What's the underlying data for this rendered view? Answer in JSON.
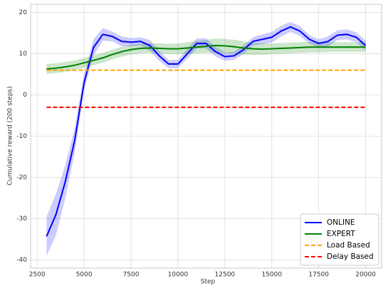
{
  "chart_data": {
    "type": "line",
    "xlabel": "Step",
    "ylabel": "Cumulative reward (200 steps)",
    "x": [
      3000,
      3500,
      4000,
      4500,
      5000,
      5500,
      6000,
      6500,
      7000,
      7500,
      8000,
      8500,
      9000,
      9500,
      10000,
      10500,
      11000,
      11500,
      12000,
      12500,
      13000,
      13500,
      14000,
      14500,
      15000,
      15500,
      16000,
      16500,
      17000,
      17500,
      18000,
      18500,
      19000,
      19500,
      20000
    ],
    "xlim": [
      2150,
      20850
    ],
    "xticks": [
      2500,
      5000,
      7500,
      10000,
      12500,
      15000,
      17500,
      20000
    ],
    "ylim": [
      -42,
      22
    ],
    "yticks": [
      -40,
      -30,
      -20,
      -10,
      0,
      10,
      20
    ],
    "grid": true,
    "legend": "lower right",
    "series": [
      {
        "name": "ONLINE",
        "color": "#0000ff",
        "dashed": false,
        "values": [
          -34.3,
          -29,
          -21,
          -11,
          3,
          11.5,
          14.7,
          14.2,
          13,
          12.8,
          13,
          12,
          9.5,
          7.5,
          7.5,
          10,
          12.5,
          12.5,
          10.5,
          9.3,
          9.5,
          11,
          13,
          13.5,
          14,
          15.5,
          16.5,
          15.5,
          13.5,
          12.5,
          13,
          14.5,
          14.7,
          14,
          12
        ],
        "lower": [
          -39,
          -34,
          -25,
          -14,
          1,
          9.5,
          13.2,
          13,
          11.8,
          11.8,
          12,
          10.7,
          8.3,
          6.5,
          6.5,
          8.8,
          11.3,
          11.3,
          9.3,
          8.3,
          8.5,
          10,
          12,
          12.3,
          12.7,
          14.2,
          15.3,
          14.3,
          12.5,
          11.5,
          11.8,
          13.3,
          13.5,
          12.8,
          10.8
        ],
        "upper": [
          -29.5,
          -24,
          -17,
          -8,
          5,
          13.5,
          16.2,
          15.4,
          14.2,
          13.8,
          14,
          13.3,
          10.7,
          8.5,
          8.5,
          11.2,
          13.7,
          13.7,
          11.7,
          10.3,
          10.5,
          12,
          14,
          14.7,
          15.3,
          16.8,
          17.7,
          16.7,
          14.5,
          13.5,
          14.2,
          15.7,
          15.9,
          15.2,
          13.2
        ]
      },
      {
        "name": "EXPERT",
        "color": "#008000",
        "dashed": false,
        "values": [
          6.3,
          6.5,
          6.8,
          7.2,
          7.8,
          8.4,
          9,
          9.8,
          10.5,
          11,
          11.3,
          11.4,
          11.3,
          11.2,
          11.2,
          11.4,
          11.6,
          11.8,
          12,
          11.9,
          11.7,
          11.4,
          11.2,
          11.1,
          11.2,
          11.3,
          11.4,
          11.5,
          11.6,
          11.6,
          11.6,
          11.6,
          11.6,
          11.6,
          11.6
        ],
        "lower": [
          5.1,
          5.3,
          5.6,
          6,
          6.6,
          7.2,
          7.8,
          8.6,
          9.3,
          9.8,
          10.1,
          10.2,
          10.1,
          10,
          9.9,
          10,
          10.1,
          10.2,
          10.3,
          10.2,
          10,
          9.8,
          9.7,
          9.7,
          9.9,
          10,
          10.1,
          10.2,
          10.3,
          10.3,
          10.4,
          10.4,
          10.4,
          10.4,
          10.4
        ],
        "upper": [
          7.5,
          7.7,
          8,
          8.4,
          9,
          9.6,
          10.2,
          11,
          11.7,
          12.2,
          12.5,
          12.6,
          12.5,
          12.4,
          12.5,
          12.8,
          13.1,
          13.4,
          13.7,
          13.6,
          13.4,
          13,
          12.7,
          12.5,
          12.5,
          12.6,
          12.7,
          12.8,
          12.9,
          12.9,
          12.8,
          12.8,
          12.8,
          12.8,
          12.8
        ]
      },
      {
        "name": "Load Based",
        "color": "#ffa500",
        "dashed": true,
        "values": [
          6,
          6,
          6,
          6,
          6,
          6,
          6,
          6,
          6,
          6,
          6,
          6,
          6,
          6,
          6,
          6,
          6,
          6,
          6,
          6,
          6,
          6,
          6,
          6,
          6,
          6,
          6,
          6,
          6,
          6,
          6,
          6,
          6,
          6,
          6
        ]
      },
      {
        "name": "Delay Based",
        "color": "#ff0000",
        "dashed": true,
        "values": [
          -3,
          -3,
          -3,
          -3,
          -3,
          -3,
          -3,
          -3,
          -3,
          -3,
          -3,
          -3,
          -3,
          -3,
          -3,
          -3,
          -3,
          -3,
          -3,
          -3,
          -3,
          -3,
          -3,
          -3,
          -3,
          -3,
          -3,
          -3,
          -3,
          -3,
          -3,
          -3,
          -3,
          -3,
          -3
        ]
      }
    ]
  }
}
